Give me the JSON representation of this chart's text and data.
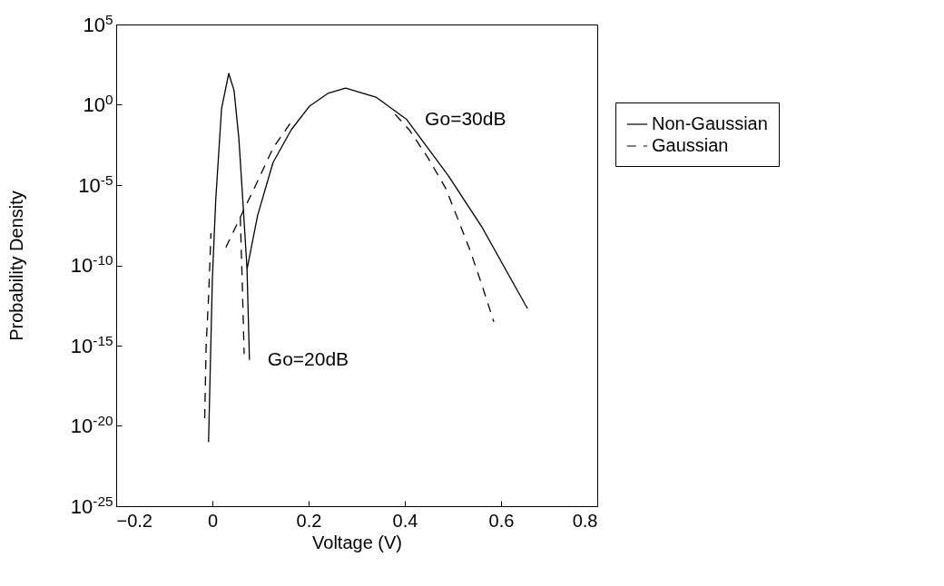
{
  "chart_data": {
    "type": "line",
    "xlabel": "Voltage (V)",
    "ylabel": "Probability Density",
    "log": "y",
    "grid": false,
    "legend": "right",
    "marker": "none",
    "xlim": [
      -0.2,
      0.8
    ],
    "xticks": [
      -0.2,
      0,
      0.2,
      0.4,
      0.6,
      0.8
    ],
    "ylim": [
      1e-25,
      100000.0
    ],
    "yticks": [
      {
        "value": 1e-25,
        "label": "10$^{-25}$"
      },
      {
        "value": 1e-20,
        "label": "10$^{-20}$"
      },
      {
        "value": 1e-15,
        "label": "10$^{-15}$"
      },
      {
        "value": 1e-10,
        "label": "10$^{-10}$"
      },
      {
        "value": 1e-05,
        "label": "10$^{-5}$"
      },
      {
        "value": 1,
        "label": "10$^{0}$"
      },
      {
        "value": 100000.0,
        "label": "10$^{5}$"
      }
    ],
    "series": [
      {
        "name": "Non-Gaussian",
        "color": "#000000",
        "line_style": "solid",
        "x": [
          -0.008,
          0,
          0.007,
          0.019,
          0.034,
          0.045,
          0.055,
          0.064,
          0.072,
          0.077,
          null,
          0.072,
          0.094,
          0.126,
          0.164,
          0.202,
          0.24,
          0.277,
          0.34,
          0.404,
          0.49,
          0.56,
          0.655
        ],
        "values": [
          1e-21,
          1.6e-11,
          1.3e-06,
          0.56,
          89,
          7.9,
          0.008,
          5e-07,
          5.6e-11,
          1.3e-16,
          null,
          5.6e-11,
          1.3e-07,
          0.00025,
          0.028,
          0.83,
          5.1,
          11,
          3,
          0.12,
          4e-05,
          2.5e-08,
          2e-13
        ]
      },
      {
        "name": "Gaussian",
        "color": "#000000",
        "line_style": "dashed",
        "x": [
          -0.016,
          -0.013,
          -0.008,
          -0.003,
          null,
          0.058,
          0.062,
          0.066,
          null,
          0.028,
          0.092,
          0.126,
          0.17,
          null,
          0.38,
          0.409,
          0.447,
          0.485,
          0.51,
          0.536,
          0.56,
          0.585
        ],
        "values": [
          3e-20,
          1e-15,
          1e-12,
          1e-08,
          null,
          1e-07,
          1e-11,
          3e-16,
          null,
          1.3e-09,
          1.3e-05,
          0.002,
          0.16,
          null,
          0.25,
          0.028,
          0.00056,
          6.3e-06,
          8e-08,
          8e-10,
          6.3e-12,
          3e-14
        ]
      }
    ],
    "annotations": [
      {
        "text": "Go=30dB",
        "x": 0.404,
        "y": 0.12
      },
      {
        "text": "Go=20dB",
        "x": 0.077,
        "y": 1.3e-16
      }
    ]
  }
}
